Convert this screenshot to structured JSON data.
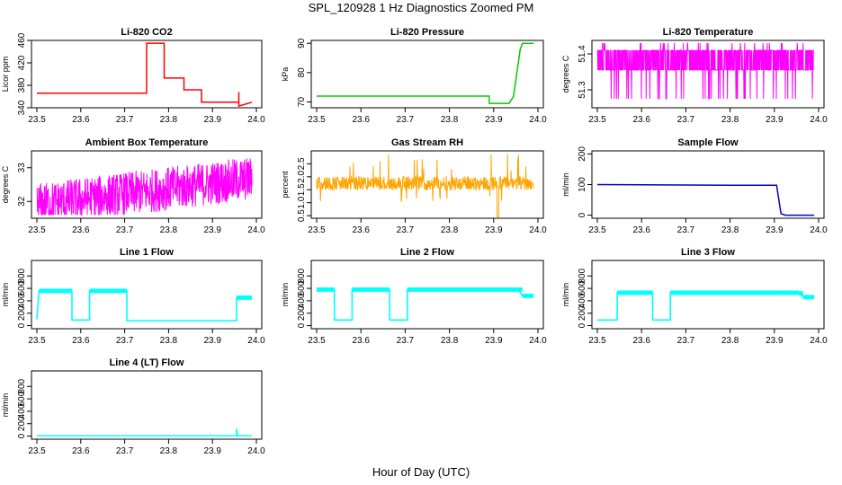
{
  "figure": {
    "title": "SPL_120928  1 Hz Diagnostics Zoomed PM",
    "xlabel": "Hour of Day (UTC)"
  },
  "chart_data": [
    {
      "type": "line",
      "title": "Li-820 CO2",
      "ylabel": "Licor ppm",
      "color": "#ff0000",
      "xlim": [
        23.5,
        24.0
      ],
      "ylim": [
        340,
        460
      ],
      "yticks": [
        340,
        380,
        420,
        460
      ],
      "xticks": [
        23.5,
        23.6,
        23.7,
        23.8,
        23.9,
        24.0
      ],
      "x": [
        23.5,
        23.75,
        23.75,
        23.79,
        23.79,
        23.835,
        23.835,
        23.875,
        23.875,
        23.96,
        23.96,
        23.96,
        23.99
      ],
      "y": [
        366,
        366,
        455,
        455,
        393,
        393,
        372,
        372,
        350,
        350,
        368,
        343,
        350
      ]
    },
    {
      "type": "line",
      "title": "Li-820 Pressure",
      "ylabel": "kPa",
      "color": "#00cc00",
      "xlim": [
        23.5,
        24.0
      ],
      "ylim": [
        68,
        91
      ],
      "yticks": [
        70,
        80,
        90
      ],
      "xticks": [
        23.5,
        23.6,
        23.7,
        23.8,
        23.9,
        24.0
      ],
      "x": [
        23.5,
        23.89,
        23.89,
        23.935,
        23.945,
        23.96,
        23.965,
        23.99
      ],
      "y": [
        72,
        72,
        69.5,
        69.5,
        72,
        88,
        90,
        90
      ]
    },
    {
      "type": "line",
      "title": "Li-820 Temperature",
      "ylabel": "degrees C",
      "color": "#ff00ff",
      "xlim": [
        23.5,
        24.0
      ],
      "ylim": [
        51.32,
        51.395
      ],
      "yticks": [
        51.34,
        51.38
      ],
      "xticks": [
        23.5,
        23.6,
        23.7,
        23.8,
        23.9,
        24.0
      ],
      "x": [
        23.5,
        23.99
      ],
      "y": [
        51.355,
        51.38
      ]
    },
    {
      "type": "line",
      "title": "Ambient Box Temperature",
      "ylabel": "degrees C",
      "color": "#ff00ff",
      "xlim": [
        23.5,
        24.0
      ],
      "ylim": [
        31.5,
        33.5
      ],
      "yticks": [
        32.0,
        33.0
      ],
      "xticks": [
        23.5,
        23.6,
        23.7,
        23.8,
        23.9,
        24.0
      ],
      "x": [
        23.5,
        23.99
      ],
      "y": [
        31.9,
        33.0
      ]
    },
    {
      "type": "line",
      "title": "Gas Stream RH",
      "ylabel": "percent",
      "color": "#ffa500",
      "xlim": [
        23.5,
        24.0
      ],
      "ylim": [
        0.4,
        3.0
      ],
      "yticks": [
        0.5,
        1.0,
        1.5,
        2.0,
        2.5
      ],
      "xticks": [
        23.5,
        23.6,
        23.7,
        23.8,
        23.9,
        24.0
      ],
      "x": [
        23.5,
        23.99
      ],
      "y": [
        1.5,
        2.0
      ]
    },
    {
      "type": "line",
      "title": "Sample Flow",
      "ylabel": "ml/min",
      "color": "#0000cc",
      "xlim": [
        23.5,
        24.0
      ],
      "ylim": [
        -10,
        210
      ],
      "yticks": [
        0,
        100,
        200
      ],
      "xticks": [
        23.5,
        23.6,
        23.7,
        23.8,
        23.9,
        24.0
      ],
      "x": [
        23.5,
        23.8,
        23.905,
        23.915,
        23.925,
        23.99
      ],
      "y": [
        100,
        98,
        98,
        5,
        0,
        0
      ]
    },
    {
      "type": "line",
      "title": "Line 1 Flow",
      "ylabel": "ml/min",
      "color": "#00ffff",
      "xlim": [
        23.5,
        24.0
      ],
      "ylim": [
        -50,
        1050
      ],
      "yticks": [
        0,
        200,
        400,
        600,
        800
      ],
      "xticks": [
        23.5,
        23.6,
        23.7,
        23.8,
        23.9,
        24.0
      ],
      "x": [
        23.5,
        23.505,
        23.58,
        23.58,
        23.62,
        23.62,
        23.705,
        23.705,
        23.955,
        23.955,
        23.99
      ],
      "y": [
        100,
        560,
        560,
        90,
        90,
        560,
        560,
        80,
        80,
        450,
        450
      ]
    },
    {
      "type": "line",
      "title": "Line 2 Flow",
      "ylabel": "ml/min",
      "color": "#00ffff",
      "xlim": [
        23.5,
        24.0
      ],
      "ylim": [
        -50,
        1050
      ],
      "yticks": [
        0,
        200,
        400,
        600,
        800
      ],
      "xticks": [
        23.5,
        23.6,
        23.7,
        23.8,
        23.9,
        24.0
      ],
      "x": [
        23.5,
        23.54,
        23.54,
        23.58,
        23.58,
        23.665,
        23.665,
        23.705,
        23.705,
        23.955,
        23.965,
        23.99
      ],
      "y": [
        580,
        580,
        90,
        90,
        580,
        580,
        90,
        90,
        580,
        580,
        480,
        480
      ]
    },
    {
      "type": "line",
      "title": "Line 3 Flow",
      "ylabel": "ml/min",
      "color": "#00ffff",
      "xlim": [
        23.5,
        24.0
      ],
      "ylim": [
        -50,
        1050
      ],
      "yticks": [
        0,
        200,
        400,
        600,
        800
      ],
      "xticks": [
        23.5,
        23.6,
        23.7,
        23.8,
        23.9,
        24.0
      ],
      "x": [
        23.5,
        23.505,
        23.545,
        23.545,
        23.625,
        23.625,
        23.665,
        23.665,
        23.955,
        23.965,
        23.99
      ],
      "y": [
        90,
        90,
        90,
        530,
        530,
        90,
        90,
        530,
        520,
        460,
        460
      ]
    },
    {
      "type": "line",
      "title": "Line 4 (LT) Flow",
      "ylabel": "ml/min",
      "color": "#00ffff",
      "xlim": [
        23.5,
        24.0
      ],
      "ylim": [
        -50,
        1050
      ],
      "yticks": [
        0,
        200,
        400,
        600,
        800
      ],
      "xticks": [
        23.5,
        23.6,
        23.7,
        23.8,
        23.9,
        24.0
      ],
      "x": [
        23.5,
        23.955,
        23.955,
        23.957,
        23.99
      ],
      "y": [
        5,
        5,
        120,
        5,
        5
      ]
    }
  ]
}
